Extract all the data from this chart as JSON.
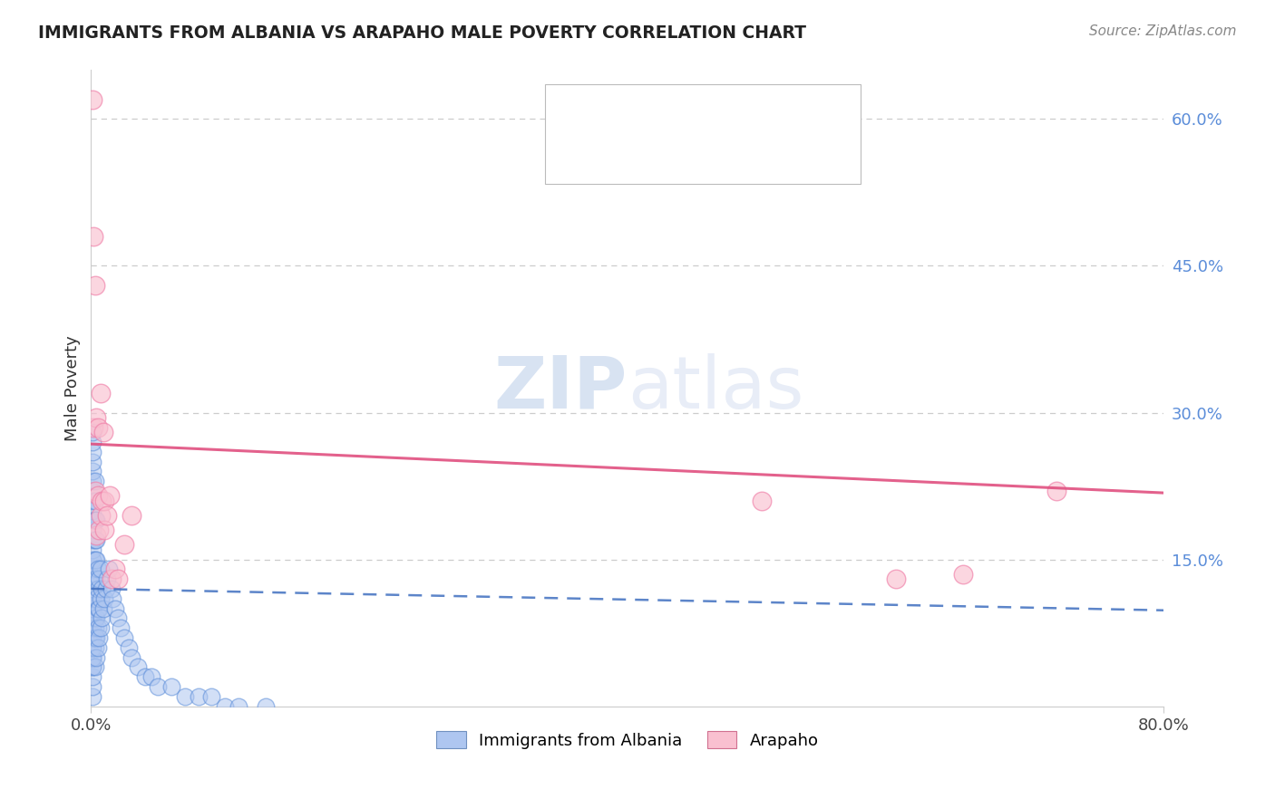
{
  "title": "IMMIGRANTS FROM ALBANIA VS ARAPAHO MALE POVERTY CORRELATION CHART",
  "source": "Source: ZipAtlas.com",
  "ylabel": "Male Poverty",
  "xmin": 0.0,
  "xmax": 0.8,
  "ymin": 0.0,
  "ymax": 0.65,
  "ytick_vals": [
    0.15,
    0.3,
    0.45,
    0.6
  ],
  "ytick_labels": [
    "15.0%",
    "30.0%",
    "45.0%",
    "60.0%"
  ],
  "blue_color": "#5b8dd9",
  "pink_color": "#f07fa8",
  "blue_fill": "#aec6f0",
  "pink_fill": "#f9c0d0",
  "trend_blue_color": "#4070c0",
  "trend_pink_color": "#e05080",
  "legend_blue_text_color": "#3060c0",
  "legend_pink_text_color": "#3060c0",
  "bottom_legend_labels": [
    "Immigrants from Albania",
    "Arapaho"
  ],
  "watermark_zip": "ZIP",
  "watermark_atlas": "atlas",
  "albania_x": [
    0.001,
    0.001,
    0.001,
    0.001,
    0.001,
    0.001,
    0.001,
    0.001,
    0.001,
    0.001,
    0.001,
    0.001,
    0.001,
    0.001,
    0.001,
    0.001,
    0.001,
    0.001,
    0.001,
    0.001,
    0.001,
    0.001,
    0.001,
    0.001,
    0.001,
    0.001,
    0.001,
    0.001,
    0.001,
    0.001,
    0.001,
    0.001,
    0.001,
    0.001,
    0.001,
    0.001,
    0.001,
    0.001,
    0.001,
    0.001,
    0.003,
    0.003,
    0.003,
    0.003,
    0.003,
    0.003,
    0.003,
    0.003,
    0.003,
    0.003,
    0.003,
    0.003,
    0.004,
    0.004,
    0.004,
    0.004,
    0.004,
    0.004,
    0.004,
    0.004,
    0.005,
    0.005,
    0.005,
    0.005,
    0.005,
    0.006,
    0.006,
    0.006,
    0.007,
    0.007,
    0.007,
    0.008,
    0.008,
    0.009,
    0.01,
    0.011,
    0.012,
    0.013,
    0.015,
    0.016,
    0.018,
    0.02,
    0.022,
    0.025,
    0.028,
    0.03,
    0.035,
    0.04,
    0.045,
    0.05,
    0.06,
    0.07,
    0.08,
    0.09,
    0.1,
    0.11,
    0.13
  ],
  "albania_y": [
    0.01,
    0.02,
    0.03,
    0.04,
    0.04,
    0.05,
    0.05,
    0.06,
    0.06,
    0.07,
    0.07,
    0.08,
    0.08,
    0.09,
    0.09,
    0.1,
    0.1,
    0.11,
    0.11,
    0.12,
    0.12,
    0.13,
    0.13,
    0.14,
    0.14,
    0.15,
    0.15,
    0.16,
    0.17,
    0.18,
    0.19,
    0.2,
    0.21,
    0.22,
    0.23,
    0.24,
    0.25,
    0.26,
    0.27,
    0.28,
    0.04,
    0.06,
    0.07,
    0.08,
    0.09,
    0.11,
    0.13,
    0.15,
    0.17,
    0.19,
    0.21,
    0.23,
    0.05,
    0.07,
    0.09,
    0.11,
    0.13,
    0.15,
    0.17,
    0.19,
    0.06,
    0.08,
    0.1,
    0.12,
    0.14,
    0.07,
    0.1,
    0.13,
    0.08,
    0.11,
    0.14,
    0.09,
    0.12,
    0.1,
    0.11,
    0.12,
    0.13,
    0.14,
    0.12,
    0.11,
    0.1,
    0.09,
    0.08,
    0.07,
    0.06,
    0.05,
    0.04,
    0.03,
    0.03,
    0.02,
    0.02,
    0.01,
    0.01,
    0.01,
    0.0,
    0.0,
    0.0
  ],
  "arapaho_x": [
    0.001,
    0.002,
    0.002,
    0.003,
    0.003,
    0.004,
    0.004,
    0.005,
    0.005,
    0.006,
    0.007,
    0.007,
    0.008,
    0.009,
    0.01,
    0.01,
    0.012,
    0.014,
    0.015,
    0.018,
    0.02,
    0.025,
    0.03,
    0.5,
    0.6,
    0.65,
    0.72
  ],
  "arapaho_y": [
    0.62,
    0.48,
    0.285,
    0.43,
    0.22,
    0.295,
    0.175,
    0.285,
    0.215,
    0.18,
    0.32,
    0.195,
    0.21,
    0.28,
    0.21,
    0.18,
    0.195,
    0.215,
    0.13,
    0.14,
    0.13,
    0.165,
    0.195,
    0.21,
    0.13,
    0.135,
    0.22
  ],
  "albania_trend_x": [
    0.0,
    0.8
  ],
  "albania_trend_y": [
    0.12,
    0.098
  ],
  "arapaho_trend_x": [
    0.0,
    0.8
  ],
  "arapaho_trend_y": [
    0.268,
    0.218
  ]
}
